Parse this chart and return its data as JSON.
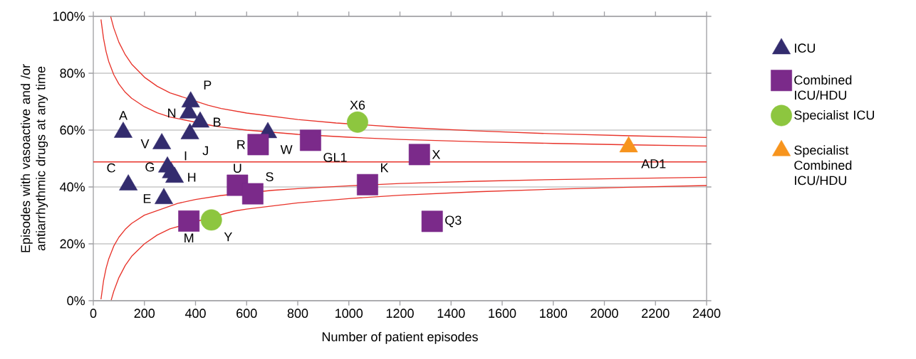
{
  "chart_data": {
    "type": "scatter",
    "xlabel": "Number of patient episodes",
    "ylabel": "Episodes with vasoactive and /or antiarrhythmic drugs at any time",
    "xlim": [
      0,
      2400
    ],
    "ylim": [
      0,
      100
    ],
    "xticks": [
      0,
      200,
      400,
      600,
      800,
      1000,
      1200,
      1400,
      1600,
      1800,
      2000,
      2200,
      2400
    ],
    "yticks": [
      {
        "value": 0,
        "label": "0%"
      },
      {
        "value": 20,
        "label": "20%"
      },
      {
        "value": 40,
        "label": "40%"
      },
      {
        "value": 60,
        "label": "60%"
      },
      {
        "value": 80,
        "label": "80%"
      },
      {
        "value": 100,
        "label": "100%"
      }
    ],
    "grid": "y",
    "legend": "right",
    "ref_lines": [
      {
        "axis": "y",
        "value": 48.8,
        "color": "#e8332a"
      }
    ],
    "series": [
      {
        "name": "ICU",
        "color": "#332c6e",
        "marker": "triangle",
        "x": [
          117,
          137,
          268,
          290,
          305,
          318,
          276,
          381,
          374,
          418,
          378,
          683
        ],
        "values": [
          59.2,
          40.7,
          55.2,
          47,
          45,
          43.4,
          35.9,
          69.9,
          66,
          62.8,
          58.7,
          59.1
        ]
      },
      {
        "name": "Combined ICU/HDU",
        "color": "#7b2a8a",
        "marker": "square",
        "x": [
          645,
          564,
          624,
          374,
          850,
          1073,
          1276,
          1326
        ],
        "values": [
          54.9,
          40.6,
          37.6,
          28,
          56.4,
          40.8,
          51.4,
          27.9
        ]
      },
      {
        "name": "Specialist ICU",
        "color": "#8dc63f",
        "marker": "circle",
        "x": [
          462,
          1034
        ],
        "values": [
          28.4,
          62.8
        ]
      },
      {
        "name": "Specialist Combined ICU/HDU",
        "color": "#f7941d",
        "marker": "triangle",
        "x": [
          2095
        ],
        "values": [
          54.1
        ]
      },
      {
        "type": "line",
        "color": "#e8332a",
        "marker": "none",
        "x": [
          68,
          80,
          100,
          125,
          150,
          200,
          250,
          300,
          450,
          500,
          600,
          800,
          950,
          1200,
          1500,
          1800,
          2100,
          2400
        ],
        "values": [
          99.9,
          95.9,
          90.9,
          86.5,
          83.2,
          78.6,
          75.4,
          73.1,
          68.7,
          67.6,
          66.0,
          63.7,
          62.5,
          61.0,
          59.7,
          58.7,
          58.0,
          57.4
        ]
      },
      {
        "type": "line",
        "color": "#e8332a",
        "marker": "none",
        "x": [
          30,
          40,
          50,
          60,
          80,
          100,
          125,
          150,
          200,
          250,
          300,
          470,
          500,
          600,
          800,
          1000,
          1200,
          1500,
          1800,
          2100,
          2400
        ],
        "values": [
          98.9,
          92.2,
          87.6,
          84.2,
          79.5,
          76.2,
          73.3,
          71.2,
          68.2,
          66.1,
          64.6,
          61.5,
          61.1,
          60.0,
          58.5,
          57.5,
          56.7,
          55.9,
          55.3,
          54.8,
          54.4
        ]
      },
      {
        "type": "line",
        "color": "#e8332a",
        "marker": "none",
        "x": [
          30,
          40,
          50,
          60,
          80,
          100,
          125,
          150,
          200,
          330,
          400,
          500,
          700,
          800,
          1000,
          1200,
          1500,
          1800,
          2100,
          2400
        ],
        "values": [
          0.5,
          7.0,
          11.4,
          14.6,
          19.2,
          22.3,
          25.1,
          27.2,
          30.1,
          34.2,
          35.6,
          37.0,
          38.8,
          39.4,
          40.4,
          41.2,
          42.0,
          42.6,
          43.0,
          43.4
        ]
      },
      {
        "type": "line",
        "color": "#e8332a",
        "marker": "none",
        "x": [
          70,
          80,
          100,
          125,
          150,
          200,
          250,
          300,
          550,
          600,
          800,
          1000,
          1200,
          1500,
          1800,
          2100,
          2400
        ],
        "values": [
          0.2,
          3.3,
          8.1,
          12.4,
          15.6,
          20.0,
          23.1,
          25.3,
          31.5,
          32.2,
          34.4,
          35.9,
          37.1,
          38.3,
          39.2,
          39.9,
          40.5
        ]
      }
    ],
    "annotations": [
      {
        "text": "A",
        "x": 117,
        "y": 59.2
      },
      {
        "text": "C",
        "x": 137,
        "y": 40.7
      },
      {
        "text": "V",
        "x": 268,
        "y": 55.2
      },
      {
        "text": "G",
        "x": 290,
        "y": 47
      },
      {
        "text": "I",
        "x": 305,
        "y": 45
      },
      {
        "text": "H",
        "x": 318,
        "y": 43.4
      },
      {
        "text": "E",
        "x": 276,
        "y": 35.9
      },
      {
        "text": "P",
        "x": 381,
        "y": 69.9
      },
      {
        "text": "N",
        "x": 374,
        "y": 66
      },
      {
        "text": "B",
        "x": 418,
        "y": 62.8
      },
      {
        "text": "J",
        "x": 378,
        "y": 58.7
      },
      {
        "text": "W",
        "x": 683,
        "y": 59.1
      },
      {
        "text": "R",
        "x": 645,
        "y": 54.9
      },
      {
        "text": "U",
        "x": 564,
        "y": 40.6
      },
      {
        "text": "S",
        "x": 624,
        "y": 37.6
      },
      {
        "text": "M",
        "x": 374,
        "y": 28
      },
      {
        "text": "GL1",
        "x": 850,
        "y": 56.4
      },
      {
        "text": "K",
        "x": 1073,
        "y": 40.8
      },
      {
        "text": "X",
        "x": 1276,
        "y": 51.4
      },
      {
        "text": "Q3",
        "x": 1326,
        "y": 27.9
      },
      {
        "text": "Y",
        "x": 462,
        "y": 28.4
      },
      {
        "text": "X6",
        "x": 1034,
        "y": 62.8
      },
      {
        "text": "AD1",
        "x": 2095,
        "y": 54.1
      }
    ]
  }
}
